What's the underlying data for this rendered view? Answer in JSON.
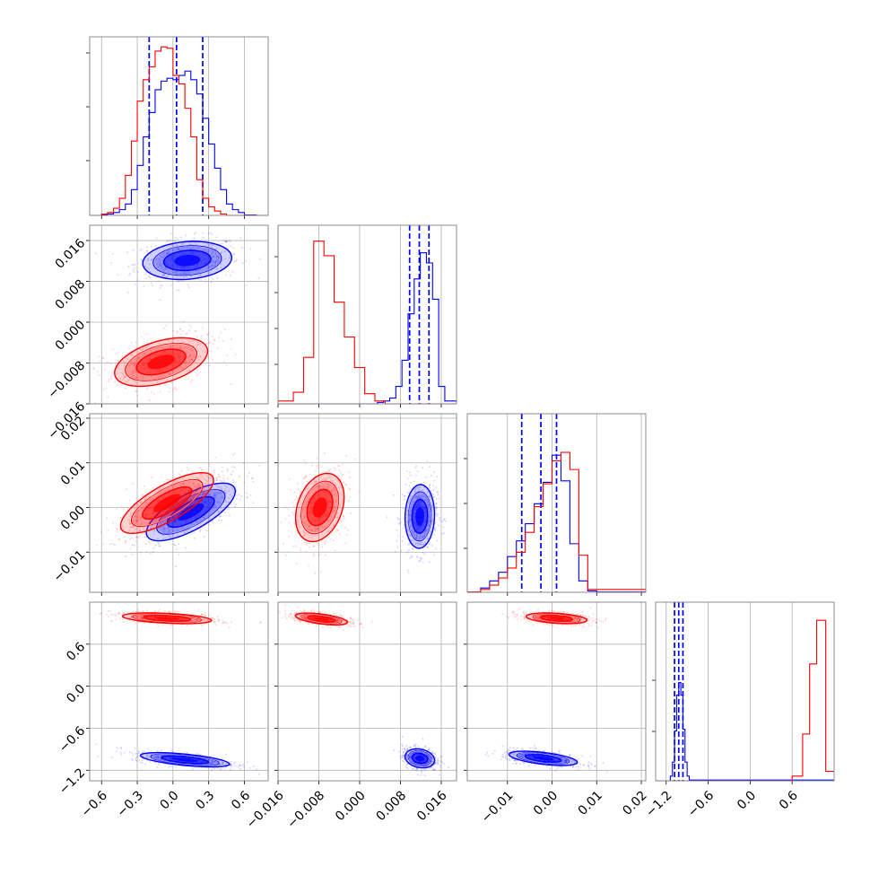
{
  "chart_data": {
    "type": "corner",
    "colors": {
      "blue": "#0000ff",
      "red": "#ff0000",
      "grid": "#b0b0b0",
      "frame": "#808080"
    },
    "grid": true,
    "variables": [
      {
        "range": [
          -0.7,
          0.8
        ],
        "ticks": [
          -0.6,
          -0.3,
          0.0,
          0.3,
          0.6
        ],
        "tick_labels": [
          "−0.6",
          "−0.3",
          "0.0",
          "0.3",
          "0.6"
        ]
      },
      {
        "range": [
          -0.016,
          0.019
        ],
        "ticks": [
          -0.016,
          -0.008,
          0.0,
          0.008,
          0.016
        ],
        "tick_labels": [
          "−0.016",
          "−0.008",
          "0.000",
          "0.008",
          "0.016"
        ]
      },
      {
        "range": [
          -0.019,
          0.021
        ],
        "ticks": [
          -0.01,
          0.0,
          0.01,
          0.02
        ],
        "tick_labels": [
          "−0.01",
          "0.00",
          "0.01",
          "0.02"
        ]
      },
      {
        "range": [
          -1.35,
          1.2
        ],
        "ticks": [
          -1.2,
          -0.6,
          0.0,
          0.6
        ],
        "tick_labels": [
          "−1.2",
          "−0.6",
          "0.0",
          "0.6"
        ]
      }
    ],
    "series": [
      {
        "color": "blue",
        "quantiles": [
          [
            -0.2,
            0.03,
            0.25
          ],
          [
            0.0098,
            0.0117,
            0.0136
          ],
          [
            -0.0068,
            -0.0025,
            0.001
          ],
          [
            -1.08,
            -1.02,
            -0.96
          ]
        ],
        "hist": [
          {
            "edges": [
              -0.7,
              -0.6,
              -0.55,
              -0.5,
              -0.45,
              -0.4,
              -0.35,
              -0.3,
              -0.25,
              -0.2,
              -0.15,
              -0.1,
              -0.05,
              0.0,
              0.05,
              0.1,
              0.15,
              0.2,
              0.25,
              0.3,
              0.35,
              0.4,
              0.45,
              0.5,
              0.55,
              0.6,
              0.7,
              0.8
            ],
            "counts": [
              0.0,
              0.3,
              1,
              2,
              4,
              8,
              18,
              35,
              55,
              72,
              88,
              94,
              96,
              95,
              98,
              101,
              95,
              85,
              68,
              50,
              33,
              18,
              8,
              4,
              2,
              0.3,
              0.0
            ]
          },
          {
            "edges": [
              -0.016,
              0.0035,
              0.0047,
              0.0059,
              0.0071,
              0.0083,
              0.0095,
              0.0107,
              0.0119,
              0.0131,
              0.0143,
              0.0155,
              0.0167,
              0.019
            ],
            "counts": [
              0,
              1,
              2,
              4,
              12,
              30,
              62,
              86,
              104,
              97,
              72,
              12,
              2
            ]
          },
          {
            "edges": [
              -0.019,
              -0.016,
              -0.014,
              -0.012,
              -0.01,
              -0.008,
              -0.006,
              -0.004,
              -0.002,
              0.0,
              0.002,
              0.004,
              0.006,
              0.008,
              0.01,
              0.021
            ],
            "counts": [
              0.2,
              3,
              8,
              14,
              25,
              36,
              48,
              62,
              77,
              96,
              78,
              34,
              8,
              1,
              0.2
            ]
          },
          {
            "edges": [
              -1.35,
              -1.14,
              -1.11,
              -1.08,
              -1.05,
              -1.02,
              -0.99,
              -0.96,
              -0.93,
              -0.9,
              -0.87,
              1.2
            ],
            "counts": [
              0,
              3,
              12,
              32,
              55,
              63,
              55,
              33,
              12,
              3,
              0.5
            ]
          }
        ],
        "clouds": [
          {
            "x": 0,
            "y": 1,
            "center": [
              0.12,
              0.0121
            ],
            "spread": [
              0.22,
              0.0022
            ],
            "corr": 0.15
          },
          {
            "x": 0,
            "y": 2,
            "center": [
              0.15,
              -0.001
            ],
            "spread": [
              0.22,
              0.0038
            ],
            "corr": 0.72
          },
          {
            "x": 1,
            "y": 2,
            "center": [
              0.0118,
              -0.002
            ],
            "spread": [
              0.0017,
              0.0042
            ],
            "corr": 0.05
          },
          {
            "x": 0,
            "y": 3,
            "center": [
              0.1,
              -1.05
            ],
            "spread": [
              0.22,
              0.06
            ],
            "corr": -0.6
          },
          {
            "x": 1,
            "y": 3,
            "center": [
              0.0118,
              -1.03
            ],
            "spread": [
              0.0017,
              0.08
            ],
            "corr": -0.2
          },
          {
            "x": 2,
            "y": 3,
            "center": [
              -0.002,
              -1.03
            ],
            "spread": [
              0.0045,
              0.06
            ],
            "corr": -0.55
          }
        ]
      },
      {
        "color": "red",
        "quantiles": [],
        "hist": [
          {
            "edges": [
              -0.7,
              -0.6,
              -0.55,
              -0.5,
              -0.45,
              -0.4,
              -0.35,
              -0.3,
              -0.25,
              -0.2,
              -0.15,
              -0.1,
              -0.05,
              0.0,
              0.05,
              0.1,
              0.15,
              0.2,
              0.25,
              0.3,
              0.35,
              0.4,
              0.45,
              0.8
            ],
            "counts": [
              0.0,
              1,
              2,
              5,
              12,
              28,
              52,
              80,
              95,
              104,
              115,
              118,
              117,
              98,
              92,
              75,
              55,
              25,
              12,
              6,
              3,
              1,
              0.0
            ]
          },
          {
            "edges": [
              -0.016,
              -0.013,
              -0.011,
              -0.009,
              -0.007,
              -0.005,
              -0.003,
              -0.001,
              0.001,
              0.003,
              0.005,
              0.019
            ],
            "counts": [
              2,
              8,
              32,
              112,
              102,
              70,
              46,
              25,
              7,
              2,
              0
            ]
          },
          {
            "edges": [
              -0.019,
              -0.016,
              -0.014,
              -0.012,
              -0.01,
              -0.008,
              -0.006,
              -0.004,
              -0.002,
              0.0,
              0.002,
              0.004,
              0.006,
              0.008,
              0.021
            ],
            "counts": [
              0.3,
              2,
              5,
              10,
              17,
              28,
              42,
              60,
              76,
              92,
              98,
              86,
              26,
              2
            ]
          },
          {
            "edges": [
              -1.35,
              0.6,
              0.75,
              0.85,
              0.95,
              1.08,
              1.2
            ],
            "counts": [
              0,
              3,
              30,
              75,
              103,
              6
            ]
          }
        ],
        "clouds": [
          {
            "x": 0,
            "y": 1,
            "center": [
              -0.1,
              -0.0078
            ],
            "spread": [
              0.23,
              0.0028
            ],
            "corr": 0.45
          },
          {
            "x": 0,
            "y": 2,
            "center": [
              -0.05,
              0.001
            ],
            "spread": [
              0.23,
              0.004
            ],
            "corr": 0.75
          },
          {
            "x": 1,
            "y": 2,
            "center": [
              -0.0078,
              0.0
            ],
            "spread": [
              0.0028,
              0.0045
            ],
            "corr": 0.3
          },
          {
            "x": 0,
            "y": 3,
            "center": [
              -0.05,
              0.97
            ],
            "spread": [
              0.22,
              0.045
            ],
            "corr": -0.4
          },
          {
            "x": 1,
            "y": 3,
            "center": [
              -0.0075,
              0.96
            ],
            "spread": [
              0.003,
              0.05
            ],
            "corr": -0.55
          },
          {
            "x": 2,
            "y": 3,
            "center": [
              0.001,
              0.97
            ],
            "spread": [
              0.004,
              0.045
            ],
            "corr": -0.35
          }
        ]
      }
    ]
  }
}
